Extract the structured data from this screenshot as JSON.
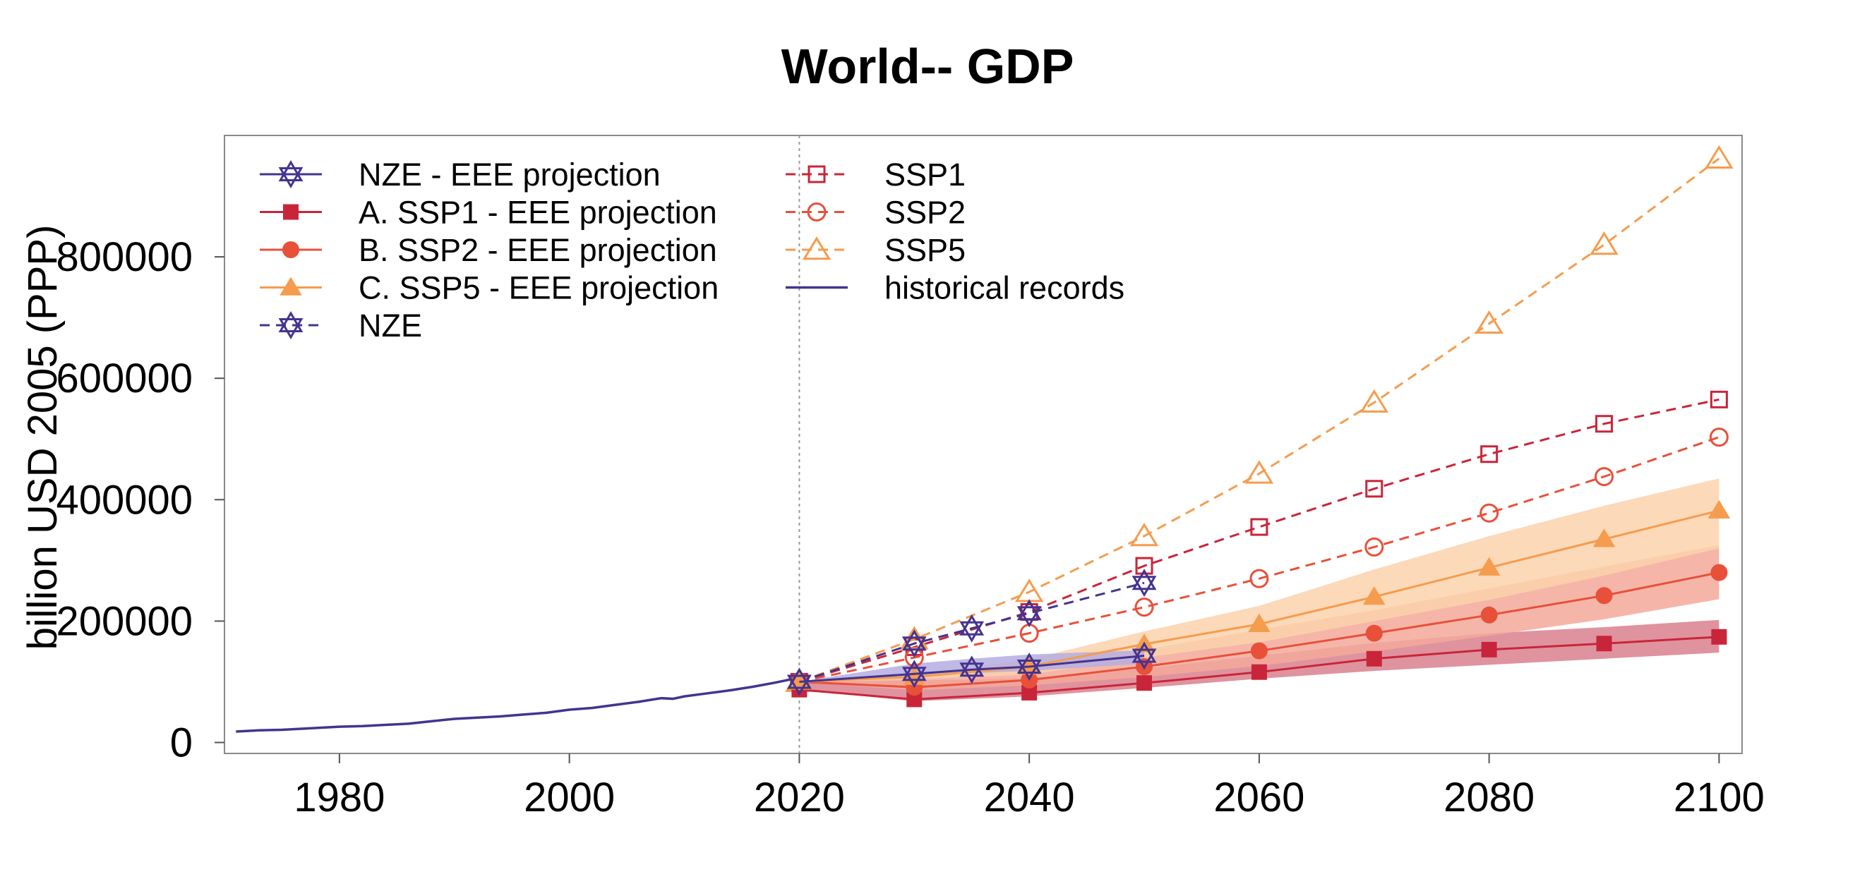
{
  "chart_data": {
    "type": "line",
    "title": "World-- GDP",
    "xlabel": "",
    "ylabel": "billion USD 2005 (PPP)",
    "xlim": [
      1970,
      2102
    ],
    "ylim": [
      -18000,
      1000000
    ],
    "x_ticks": [
      1980,
      2000,
      2020,
      2040,
      2060,
      2080,
      2100
    ],
    "x_tick_labels": [
      "1980",
      "2000",
      "2020",
      "2040",
      "2060",
      "2080",
      "2100"
    ],
    "y_ticks": [
      0,
      200000,
      400000,
      600000,
      800000
    ],
    "y_tick_labels": [
      "0",
      "200000",
      "400000",
      "600000",
      "800000"
    ],
    "vertical_reference_line": 2020,
    "legend_position": "top-left",
    "colors": {
      "nze": "#45338f",
      "ssp1": "#c9253a",
      "ssp2": "#e8503a",
      "ssp5": "#f59c4e",
      "historical": "#45338f",
      "ssp1_band": "#d9808e",
      "ssp2_band": "#f3a99a",
      "ssp5_band": "#fcd2ab",
      "nze_band": "#b5ade0"
    },
    "historical": {
      "name": "historical records",
      "x": [
        1971,
        1973,
        1975,
        1977,
        1980,
        1982,
        1984,
        1986,
        1988,
        1990,
        1992,
        1994,
        1996,
        1998,
        2000,
        2002,
        2004,
        2006,
        2008,
        2009,
        2010,
        2012,
        2014,
        2016,
        2018,
        2020
      ],
      "y": [
        18000,
        20000,
        21000,
        23000,
        26000,
        27000,
        29000,
        31000,
        35000,
        39000,
        41000,
        43000,
        46000,
        49000,
        54000,
        57000,
        62000,
        67000,
        73000,
        72000,
        76000,
        81000,
        86000,
        92000,
        99000,
        107000
      ]
    },
    "series": [
      {
        "name": "SSP1",
        "style": "dashed",
        "marker": "open-square",
        "color_key": "ssp1",
        "x": [
          2020,
          2030,
          2040,
          2050,
          2060,
          2070,
          2080,
          2090,
          2100
        ],
        "y": [
          100000,
          157000,
          215000,
          291000,
          355000,
          418000,
          475000,
          525000,
          565000
        ]
      },
      {
        "name": "SSP2",
        "style": "dashed",
        "marker": "open-circle",
        "color_key": "ssp2",
        "x": [
          2020,
          2030,
          2040,
          2050,
          2060,
          2070,
          2080,
          2090,
          2100
        ],
        "y": [
          100000,
          140000,
          180000,
          223000,
          270000,
          322000,
          378000,
          438000,
          503000
        ]
      },
      {
        "name": "SSP5",
        "style": "dashed",
        "marker": "open-triangle",
        "color_key": "ssp5",
        "x": [
          2020,
          2030,
          2040,
          2050,
          2060,
          2070,
          2080,
          2090,
          2100
        ],
        "y": [
          100000,
          170000,
          248000,
          340000,
          443000,
          560000,
          690000,
          820000,
          962000
        ]
      },
      {
        "name": "NZE",
        "style": "dashed",
        "marker": "star",
        "color_key": "nze",
        "x": [
          2020,
          2030,
          2035,
          2040,
          2050
        ],
        "y": [
          100000,
          163000,
          188000,
          213000,
          263000
        ]
      },
      {
        "name": "A. SSP1 - EEE projection",
        "style": "solid",
        "marker": "filled-square",
        "color_key": "ssp1",
        "x": [
          2020,
          2030,
          2040,
          2050,
          2060,
          2070,
          2080,
          2090,
          2100
        ],
        "y": [
          87000,
          71000,
          82000,
          98000,
          116000,
          138000,
          153000,
          163000,
          174000
        ],
        "band_lower": [
          87000,
          68000,
          76000,
          90000,
          105000,
          118000,
          128000,
          138000,
          148000
        ],
        "band_upper": [
          100000,
          102000,
          106000,
          122000,
          143000,
          164000,
          180000,
          190000,
          202000
        ]
      },
      {
        "name": "B. SSP2 - EEE projection",
        "style": "solid",
        "marker": "filled-circle",
        "color_key": "ssp2",
        "x": [
          2020,
          2030,
          2040,
          2050,
          2060,
          2070,
          2080,
          2090,
          2100
        ],
        "y": [
          100000,
          91000,
          103000,
          125000,
          151000,
          180000,
          210000,
          242000,
          280000
        ],
        "band_lower": [
          100000,
          86000,
          94000,
          108000,
          126000,
          150000,
          176000,
          203000,
          236000
        ],
        "band_upper": [
          100000,
          106000,
          124000,
          153000,
          186000,
          218000,
          254000,
          290000,
          325000
        ]
      },
      {
        "name": "C. SSP5 - EEE projection",
        "style": "solid",
        "marker": "filled-triangle",
        "color_key": "ssp5",
        "x": [
          2020,
          2030,
          2040,
          2050,
          2060,
          2070,
          2080,
          2090,
          2100
        ],
        "y": [
          100000,
          108000,
          125000,
          162000,
          195000,
          240000,
          288000,
          335000,
          382000
        ],
        "band_lower": [
          100000,
          104000,
          112000,
          140000,
          165000,
          200000,
          235000,
          275000,
          320000
        ],
        "band_upper": [
          100000,
          112000,
          137000,
          183000,
          225000,
          285000,
          340000,
          390000,
          435000
        ]
      },
      {
        "name": "NZE - EEE projection",
        "style": "solid",
        "marker": "star",
        "color_key": "nze",
        "x": [
          2020,
          2030,
          2035,
          2040,
          2050
        ],
        "y": [
          100000,
          113000,
          120000,
          125000,
          143000
        ],
        "band_lower": [
          100000,
          109000,
          114000,
          118000,
          130000
        ],
        "band_upper": [
          100000,
          130000,
          138000,
          145000,
          152000
        ]
      }
    ],
    "legend_col1": [
      {
        "label": "NZE - EEE projection",
        "series_ref": "NZE - EEE projection"
      },
      {
        "label": "A. SSP1 - EEE projection",
        "series_ref": "A. SSP1 - EEE projection"
      },
      {
        "label": "B. SSP2 - EEE projection",
        "series_ref": "B. SSP2 - EEE projection"
      },
      {
        "label": "C. SSP5 - EEE projection",
        "series_ref": "C. SSP5 - EEE projection"
      },
      {
        "label": "NZE",
        "series_ref": "NZE"
      }
    ],
    "legend_col2": [
      {
        "label": "SSP1",
        "series_ref": "SSP1"
      },
      {
        "label": "SSP2",
        "series_ref": "SSP2"
      },
      {
        "label": "SSP5",
        "series_ref": "SSP5"
      },
      {
        "label": "historical records",
        "series_ref": "historical records"
      }
    ]
  }
}
